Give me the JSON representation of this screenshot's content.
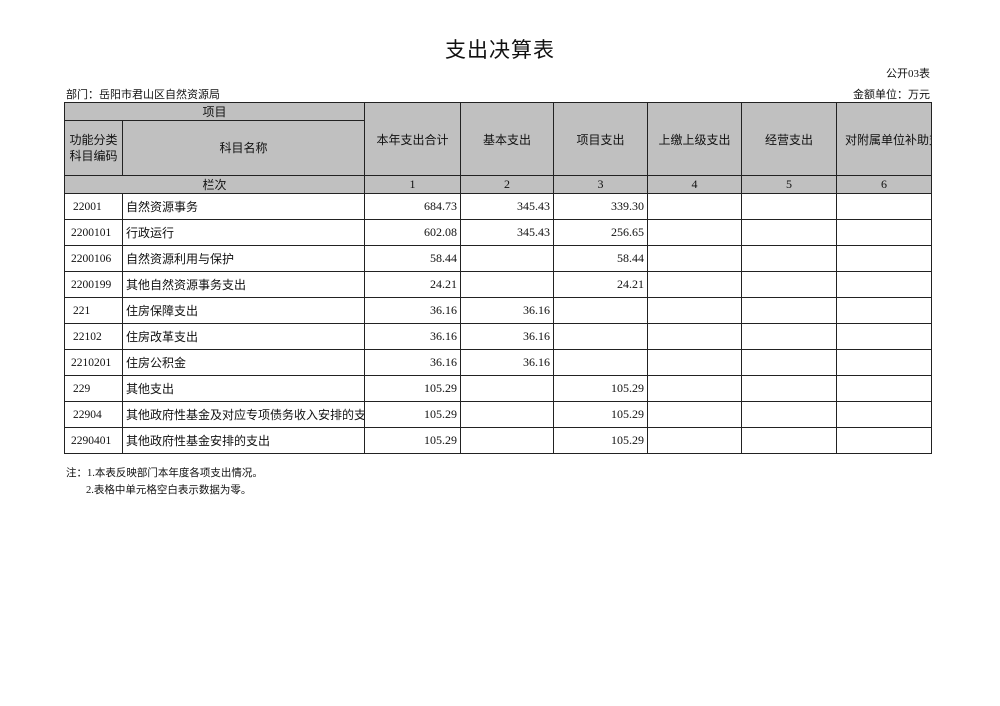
{
  "title": "支出决算表",
  "form_no": "公开03表",
  "department": "部门：岳阳市君山区自然资源局",
  "unit": "金额单位：万元",
  "header": {
    "item": "项目",
    "code": "功能分类科目编码",
    "name": "科目名称",
    "columns": [
      "本年支出合计",
      "基本支出",
      "项目支出",
      "上缴上级支出",
      "经营支出",
      "对附属单位补助支出"
    ],
    "row_label": "栏次",
    "column_numbers": [
      "1",
      "2",
      "3",
      "4",
      "5",
      "6"
    ]
  },
  "rows": [
    {
      "code": "22001",
      "name": "自然资源事务",
      "values": [
        "684.73",
        "345.43",
        "339.30",
        "",
        "",
        ""
      ]
    },
    {
      "code": "2200101",
      "name": "行政运行",
      "values": [
        "602.08",
        "345.43",
        "256.65",
        "",
        "",
        ""
      ]
    },
    {
      "code": "2200106",
      "name": "自然资源利用与保护",
      "values": [
        "58.44",
        "",
        "58.44",
        "",
        "",
        ""
      ]
    },
    {
      "code": "2200199",
      "name": "其他自然资源事务支出",
      "values": [
        "24.21",
        "",
        "24.21",
        "",
        "",
        ""
      ]
    },
    {
      "code": "221",
      "name": "住房保障支出",
      "values": [
        "36.16",
        "36.16",
        "",
        "",
        "",
        ""
      ]
    },
    {
      "code": "22102",
      "name": "住房改革支出",
      "values": [
        "36.16",
        "36.16",
        "",
        "",
        "",
        ""
      ]
    },
    {
      "code": "2210201",
      "name": "住房公积金",
      "values": [
        "36.16",
        "36.16",
        "",
        "",
        "",
        ""
      ]
    },
    {
      "code": "229",
      "name": "其他支出",
      "values": [
        "105.29",
        "",
        "105.29",
        "",
        "",
        ""
      ]
    },
    {
      "code": "22904",
      "name": "其他政府性基金及对应专项债务收入安排的支出",
      "values": [
        "105.29",
        "",
        "105.29",
        "",
        "",
        ""
      ]
    },
    {
      "code": "2290401",
      "name": "其他政府性基金安排的支出",
      "values": [
        "105.29",
        "",
        "105.29",
        "",
        "",
        ""
      ]
    }
  ],
  "notes": [
    "注：1.本表反映部门本年度各项支出情况。",
    "2.表格中单元格空白表示数据为零。"
  ]
}
